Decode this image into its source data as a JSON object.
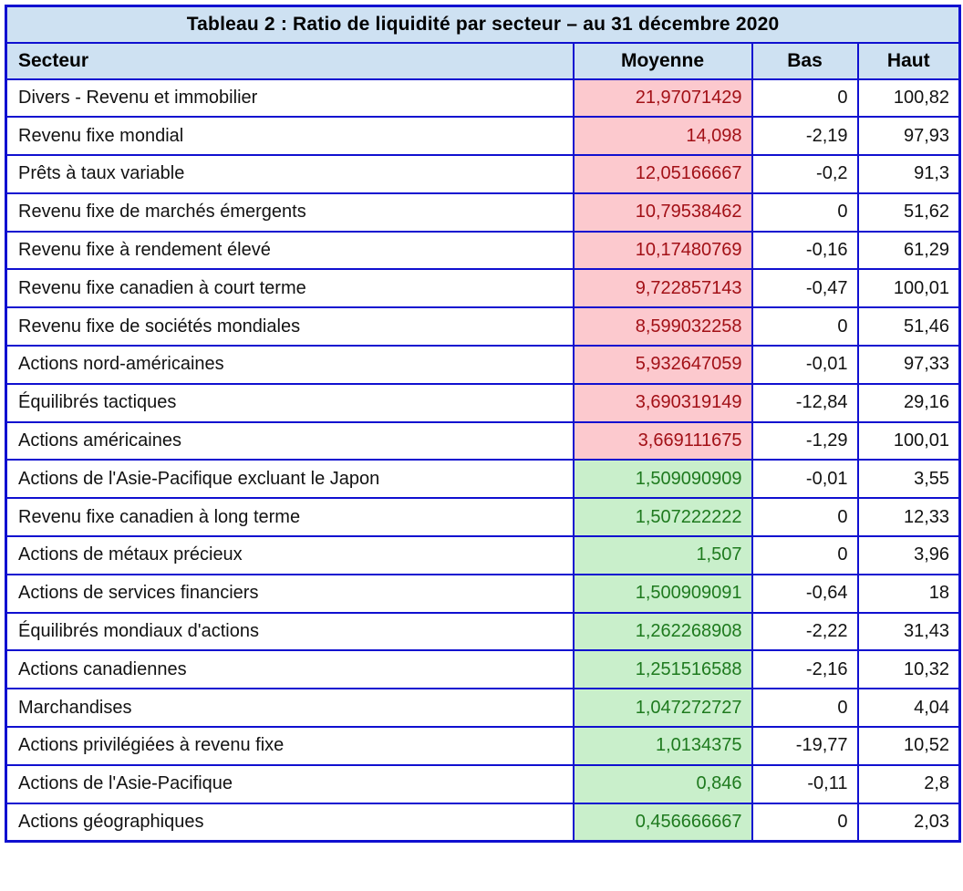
{
  "table": {
    "title": "Tableau 2 : Ratio de liquidité par secteur – au 31 décembre 2020",
    "columns": [
      "Secteur",
      "Moyenne",
      "Bas",
      "Haut"
    ],
    "rows": [
      {
        "secteur": "Divers - Revenu et immobilier",
        "moyenne": "21,97071429",
        "bas": "0",
        "haut": "100,82",
        "highlight": "red"
      },
      {
        "secteur": "Revenu fixe mondial",
        "moyenne": "14,098",
        "bas": "-2,19",
        "haut": "97,93",
        "highlight": "red"
      },
      {
        "secteur": "Prêts à taux variable",
        "moyenne": "12,05166667",
        "bas": "-0,2",
        "haut": "91,3",
        "highlight": "red"
      },
      {
        "secteur": "Revenu fixe de marchés émergents",
        "moyenne": "10,79538462",
        "bas": "0",
        "haut": "51,62",
        "highlight": "red"
      },
      {
        "secteur": "Revenu fixe à rendement élevé",
        "moyenne": "10,17480769",
        "bas": "-0,16",
        "haut": "61,29",
        "highlight": "red"
      },
      {
        "secteur": "Revenu fixe canadien à court terme",
        "moyenne": "9,722857143",
        "bas": "-0,47",
        "haut": "100,01",
        "highlight": "red"
      },
      {
        "secteur": "Revenu fixe de sociétés mondiales",
        "moyenne": "8,599032258",
        "bas": "0",
        "haut": "51,46",
        "highlight": "red"
      },
      {
        "secteur": "Actions nord-américaines",
        "moyenne": "5,932647059",
        "bas": "-0,01",
        "haut": "97,33",
        "highlight": "red"
      },
      {
        "secteur": "Équilibrés tactiques",
        "moyenne": "3,690319149",
        "bas": "-12,84",
        "haut": "29,16",
        "highlight": "red"
      },
      {
        "secteur": "Actions américaines",
        "moyenne": "3,669111675",
        "bas": "-1,29",
        "haut": "100,01",
        "highlight": "red"
      },
      {
        "secteur": "Actions de l'Asie-Pacifique excluant le Japon",
        "moyenne": "1,509090909",
        "bas": "-0,01",
        "haut": "3,55",
        "highlight": "green"
      },
      {
        "secteur": "Revenu fixe canadien à long terme",
        "moyenne": "1,507222222",
        "bas": "0",
        "haut": "12,33",
        "highlight": "green"
      },
      {
        "secteur": "Actions de métaux précieux",
        "moyenne": "1,507",
        "bas": "0",
        "haut": "3,96",
        "highlight": "green"
      },
      {
        "secteur": "Actions de services financiers",
        "moyenne": "1,500909091",
        "bas": "-0,64",
        "haut": "18",
        "highlight": "green"
      },
      {
        "secteur": "Équilibrés mondiaux d'actions",
        "moyenne": "1,262268908",
        "bas": "-2,22",
        "haut": "31,43",
        "highlight": "green"
      },
      {
        "secteur": "Actions canadiennes",
        "moyenne": "1,251516588",
        "bas": "-2,16",
        "haut": "10,32",
        "highlight": "green"
      },
      {
        "secteur": "Marchandises",
        "moyenne": "1,047272727",
        "bas": "0",
        "haut": "4,04",
        "highlight": "green"
      },
      {
        "secteur": "Actions privilégiées à revenu fixe",
        "moyenne": "1,0134375",
        "bas": "-19,77",
        "haut": "10,52",
        "highlight": "green"
      },
      {
        "secteur": "Actions de l'Asie-Pacifique",
        "moyenne": "0,846",
        "bas": "-0,11",
        "haut": "2,8",
        "highlight": "green"
      },
      {
        "secteur": "Actions géographiques",
        "moyenne": "0,456666667",
        "bas": "0",
        "haut": "2,03",
        "highlight": "green"
      }
    ]
  },
  "colors": {
    "border_blue": "#1010d0",
    "header_bg": "#cee1f2",
    "red_cell_bg": "#fcc9ce",
    "red_cell_text": "#a21016",
    "green_cell_bg": "#c9efcb",
    "green_cell_text": "#1e7a1e"
  },
  "chart_data": {
    "type": "table",
    "title": "Tableau 2 : Ratio de liquidité par secteur – au 31 décembre 2020",
    "columns": [
      "Secteur",
      "Moyenne",
      "Bas",
      "Haut"
    ],
    "rows": [
      [
        "Divers - Revenu et immobilier",
        21.97071429,
        0,
        100.82
      ],
      [
        "Revenu fixe mondial",
        14.098,
        -2.19,
        97.93
      ],
      [
        "Prêts à taux variable",
        12.05166667,
        -0.2,
        91.3
      ],
      [
        "Revenu fixe de marchés émergents",
        10.79538462,
        0,
        51.62
      ],
      [
        "Revenu fixe à rendement élevé",
        10.17480769,
        -0.16,
        61.29
      ],
      [
        "Revenu fixe canadien à court terme",
        9.722857143,
        -0.47,
        100.01
      ],
      [
        "Revenu fixe de sociétés mondiales",
        8.599032258,
        0,
        51.46
      ],
      [
        "Actions nord-américaines",
        5.932647059,
        -0.01,
        97.33
      ],
      [
        "Équilibrés tactiques",
        3.690319149,
        -12.84,
        29.16
      ],
      [
        "Actions américaines",
        3.669111675,
        -1.29,
        100.01
      ],
      [
        "Actions de l'Asie-Pacifique excluant le Japon",
        1.509090909,
        -0.01,
        3.55
      ],
      [
        "Revenu fixe canadien à long terme",
        1.507222222,
        0,
        12.33
      ],
      [
        "Actions de métaux précieux",
        1.507,
        0,
        3.96
      ],
      [
        "Actions de services financiers",
        1.500909091,
        -0.64,
        18
      ],
      [
        "Équilibrés mondiaux d'actions",
        1.262268908,
        -2.22,
        31.43
      ],
      [
        "Actions canadiennes",
        1.251516588,
        -2.16,
        10.32
      ],
      [
        "Marchandises",
        1.047272727,
        0,
        4.04
      ],
      [
        "Actions privilégiées à revenu fixe",
        1.0134375,
        -19.77,
        10.52
      ],
      [
        "Actions de l'Asie-Pacifique",
        0.846,
        -0.11,
        2.8
      ],
      [
        "Actions géographiques",
        0.456666667,
        0,
        2.03
      ]
    ],
    "layout_notes": "Moyenne column cells highlighted: rows 1-10 red (high), rows 11-20 green (low); numbers use French comma decimals; values right-aligned"
  }
}
